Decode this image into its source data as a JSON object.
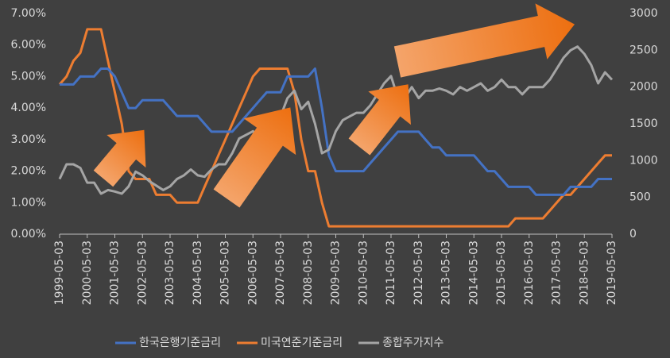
{
  "chart_data": {
    "type": "line",
    "categories": [
      "1999-05-03",
      null,
      null,
      null,
      "2000-05-03",
      null,
      null,
      null,
      "2001-05-03",
      null,
      null,
      null,
      "2002-05-03",
      null,
      null,
      null,
      "2003-05-03",
      null,
      null,
      null,
      "2004-05-03",
      null,
      null,
      null,
      "2005-05-03",
      null,
      null,
      null,
      "2006-05-03",
      null,
      null,
      null,
      "2007-05-03",
      null,
      null,
      null,
      "2008-05-03",
      null,
      null,
      null,
      "2009-05-03",
      null,
      null,
      null,
      "2010-05-03",
      null,
      null,
      null,
      "2011-05-03",
      null,
      null,
      null,
      "2012-05-03",
      null,
      null,
      null,
      "2013-05-03",
      null,
      null,
      null,
      "2014-05-03",
      null,
      null,
      null,
      "2015-05-03",
      null,
      null,
      null,
      "2016-05-03",
      null,
      null,
      null,
      "2017-05-03",
      null,
      null,
      null,
      "2018-05-03",
      null,
      null,
      null,
      "2019-05-03"
    ],
    "series": [
      {
        "name": "한국은행기준금리",
        "color": "#4472c4",
        "values": [
          4.75,
          4.75,
          4.75,
          5.0,
          5.0,
          5.0,
          5.25,
          5.25,
          5.0,
          4.5,
          4.0,
          4.0,
          4.25,
          4.25,
          4.25,
          4.25,
          4.0,
          3.75,
          3.75,
          3.75,
          3.75,
          3.5,
          3.25,
          3.25,
          3.25,
          3.25,
          3.5,
          3.75,
          4.0,
          4.25,
          4.5,
          4.5,
          4.5,
          5.0,
          5.0,
          5.0,
          5.0,
          5.25,
          4.0,
          2.5,
          2.0,
          2.0,
          2.0,
          2.0,
          2.0,
          2.25,
          2.5,
          2.75,
          3.0,
          3.25,
          3.25,
          3.25,
          3.25,
          3.0,
          2.75,
          2.75,
          2.5,
          2.5,
          2.5,
          2.5,
          2.5,
          2.25,
          2.0,
          2.0,
          1.75,
          1.5,
          1.5,
          1.5,
          1.5,
          1.25,
          1.25,
          1.25,
          1.25,
          1.25,
          1.5,
          1.5,
          1.5,
          1.5,
          1.75,
          1.75,
          1.75
        ]
      },
      {
        "name": "미국연준기준금리",
        "color": "#ed7d31",
        "values": [
          4.75,
          5.0,
          5.5,
          5.75,
          6.5,
          6.5,
          6.5,
          5.5,
          4.5,
          3.5,
          2.0,
          1.75,
          1.75,
          1.75,
          1.25,
          1.25,
          1.25,
          1.0,
          1.0,
          1.0,
          1.0,
          1.5,
          2.0,
          2.5,
          3.0,
          3.5,
          4.0,
          4.5,
          5.0,
          5.25,
          5.25,
          5.25,
          5.25,
          5.25,
          4.5,
          3.0,
          2.0,
          2.0,
          1.0,
          0.25,
          0.25,
          0.25,
          0.25,
          0.25,
          0.25,
          0.25,
          0.25,
          0.25,
          0.25,
          0.25,
          0.25,
          0.25,
          0.25,
          0.25,
          0.25,
          0.25,
          0.25,
          0.25,
          0.25,
          0.25,
          0.25,
          0.25,
          0.25,
          0.25,
          0.25,
          0.25,
          0.5,
          0.5,
          0.5,
          0.5,
          0.5,
          0.75,
          1.0,
          1.25,
          1.25,
          1.5,
          1.75,
          2.0,
          2.25,
          2.5,
          2.5
        ]
      },
      {
        "name": "종합주가지수",
        "color": "#a5a5a5",
        "axis": "y2",
        "values": [
          750,
          950,
          950,
          900,
          700,
          700,
          550,
          600,
          580,
          550,
          650,
          850,
          800,
          720,
          660,
          600,
          650,
          750,
          800,
          880,
          800,
          780,
          880,
          950,
          950,
          1100,
          1300,
          1350,
          1400,
          1300,
          1400,
          1450,
          1600,
          1850,
          1950,
          1700,
          1800,
          1500,
          1100,
          1150,
          1400,
          1550,
          1600,
          1650,
          1650,
          1750,
          1900,
          2050,
          2150,
          1850,
          1850,
          2000,
          1850,
          1950,
          1950,
          1980,
          1950,
          1900,
          2000,
          1950,
          2000,
          2050,
          1950,
          2000,
          2100,
          2000,
          2000,
          1900,
          2000,
          2000,
          2000,
          2100,
          2250,
          2400,
          2500,
          2550,
          2450,
          2300,
          2050,
          2200,
          2100
        ]
      }
    ],
    "ylim": [
      0,
      7
    ],
    "yticks": [
      {
        "value": 0,
        "label": "0.00%"
      },
      {
        "value": 1,
        "label": "1.00%"
      },
      {
        "value": 2,
        "label": "2.00%"
      },
      {
        "value": 3,
        "label": "3.00%"
      },
      {
        "value": 4,
        "label": "4.00%"
      },
      {
        "value": 5,
        "label": "5.00%"
      },
      {
        "value": 6,
        "label": "6.00%"
      },
      {
        "value": 7,
        "label": "7.00%"
      }
    ],
    "y2lim": [
      0,
      3000
    ],
    "y2ticks": [
      0,
      500,
      1000,
      1500,
      2000,
      2500,
      3000
    ],
    "legend": "bottom"
  }
}
